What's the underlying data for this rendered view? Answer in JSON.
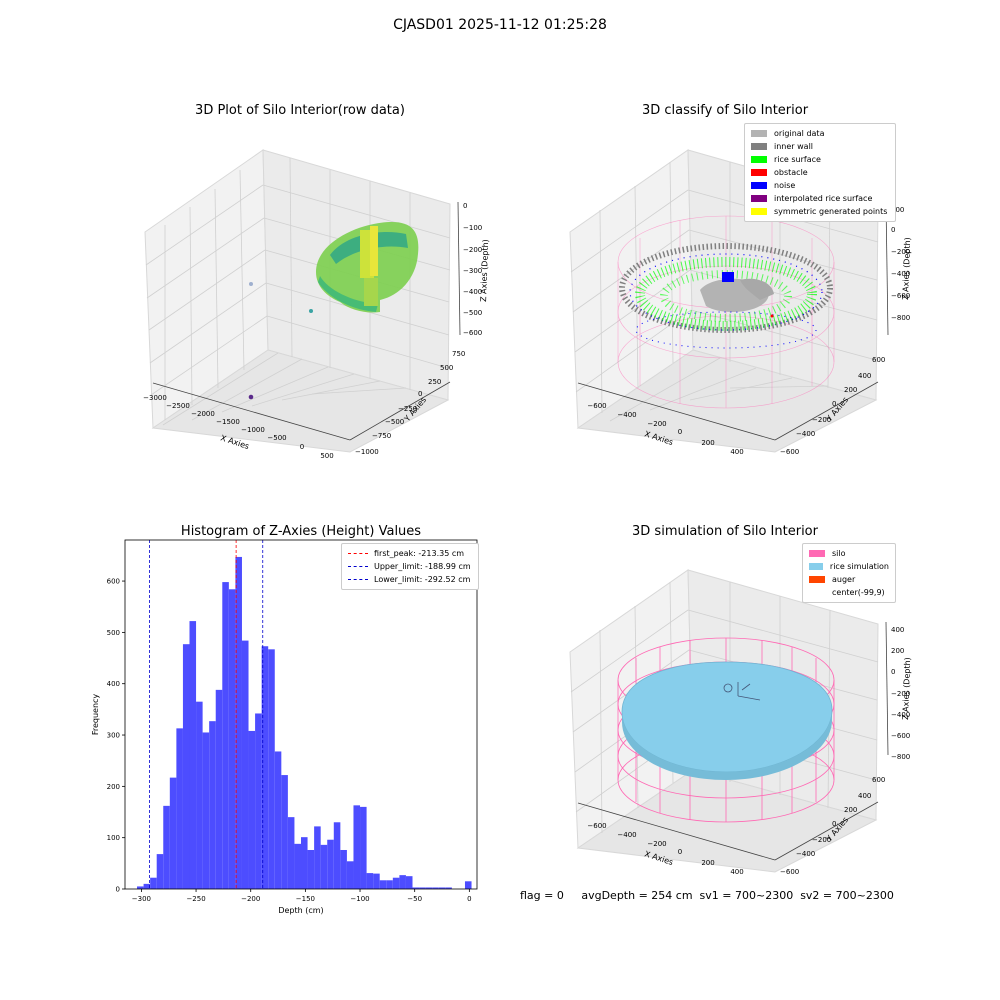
{
  "figure": {
    "suptitle": "CJASD01 2025-11-12 01:25:28",
    "status_line": "flag = 0     avgDepth = 254 cm  sv1 = 700~2300  sv2 = 700~2300"
  },
  "panels": {
    "raw": {
      "title": "3D Plot of Silo Interior(row data)",
      "xlabel": "X Axies",
      "ylabel": "Y Axies",
      "zlabel": "Z Axies (Depth)",
      "xticks": [
        "−3000",
        "−2500",
        "−2000",
        "−1500",
        "−1000",
        "−500",
        "0",
        "500"
      ],
      "yticks": [
        "750",
        "500",
        "250",
        "0",
        "−250",
        "−500",
        "−750",
        "−1000"
      ],
      "zticks": [
        "0",
        "−100",
        "−200",
        "−300",
        "−400",
        "−500",
        "−600"
      ]
    },
    "classify": {
      "title": "3D classify of Silo Interior",
      "xlabel": "X Axies",
      "ylabel": "Y Axies",
      "zlabel": "Z Axies (Depth)",
      "xticks": [
        "−600",
        "−400",
        "−200",
        "0",
        "200",
        "400"
      ],
      "yticks": [
        "600",
        "400",
        "200",
        "0",
        "−200",
        "−400",
        "−600"
      ],
      "zticks": [
        "200",
        "0",
        "−200",
        "−400",
        "−600",
        "−800"
      ],
      "legend": [
        {
          "label": "original data",
          "color": "#b3b3b3"
        },
        {
          "label": "inner wall",
          "color": "#808080"
        },
        {
          "label": "rice surface",
          "color": "#00ff00"
        },
        {
          "label": "obstacle",
          "color": "#ff0000"
        },
        {
          "label": "noise",
          "color": "#0000ff"
        },
        {
          "label": "interpolated rice surface",
          "color": "#800080"
        },
        {
          "label": "symmetric generated points",
          "color": "#ffff00"
        }
      ]
    },
    "simulation": {
      "title": "3D simulation of Silo Interior",
      "xlabel": "X Axies",
      "ylabel": "Y Axies",
      "zlabel": "Z Axies (Depth)",
      "xticks": [
        "−600",
        "−400",
        "−200",
        "0",
        "200",
        "400"
      ],
      "yticks": [
        "600",
        "400",
        "200",
        "0",
        "−200",
        "−400",
        "−600"
      ],
      "zticks": [
        "400",
        "200",
        "0",
        "−200",
        "−400",
        "−600",
        "−800"
      ],
      "legend": [
        {
          "label": "silo",
          "color": "#ff69b4"
        },
        {
          "label": "rice simulation",
          "color": "#87ceeb"
        },
        {
          "label": "auger",
          "color": "#ff4500"
        },
        {
          "label": "center(-99,9)",
          "color": ""
        }
      ]
    }
  },
  "chart_data": {
    "type": "bar",
    "title": "Histogram of Z-Axies (Height) Values",
    "xlabel": "Depth (cm)",
    "ylabel": "Frequency",
    "xlim": [
      -315,
      7
    ],
    "ylim": [
      0,
      680
    ],
    "xticks": [
      -300,
      -250,
      -200,
      -150,
      -100,
      -50,
      0
    ],
    "yticks": [
      0,
      100,
      200,
      300,
      400,
      500,
      600
    ],
    "bar_color": "#4d4dff",
    "bin_edges": [
      -304,
      -298,
      -292,
      -286,
      -280,
      -274,
      -268,
      -262,
      -256,
      -250,
      -244,
      -238,
      -232,
      -226,
      -220,
      -214,
      -208,
      -202,
      -196,
      -190,
      -184,
      -178,
      -172,
      -166,
      -160,
      -154,
      -148,
      -142,
      -136,
      -130,
      -124,
      -118,
      -112,
      -106,
      -100,
      -94,
      -88,
      -82,
      -76,
      -70,
      -64,
      -58,
      -52,
      -46,
      -40,
      -34,
      -28,
      -22,
      -16,
      -10,
      -4,
      2
    ],
    "values": [
      5,
      10,
      22,
      68,
      162,
      217,
      313,
      477,
      522,
      365,
      305,
      327,
      388,
      598,
      584,
      647,
      484,
      308,
      342,
      473,
      467,
      268,
      222,
      140,
      88,
      101,
      76,
      122,
      86,
      96,
      130,
      76,
      54,
      163,
      160,
      31,
      30,
      17,
      17,
      22,
      27,
      25,
      3,
      3,
      3,
      3,
      3,
      3,
      0,
      0,
      15
    ],
    "vlines": [
      {
        "x": -213.35,
        "label": "first_peak: -213.35 cm",
        "color": "#ff0000"
      },
      {
        "x": -188.99,
        "label": "Upper_limit: -188.99 cm",
        "color": "#0000cc"
      },
      {
        "x": -292.52,
        "label": "Lower_limit: -292.52 cm",
        "color": "#0000cc"
      }
    ]
  }
}
